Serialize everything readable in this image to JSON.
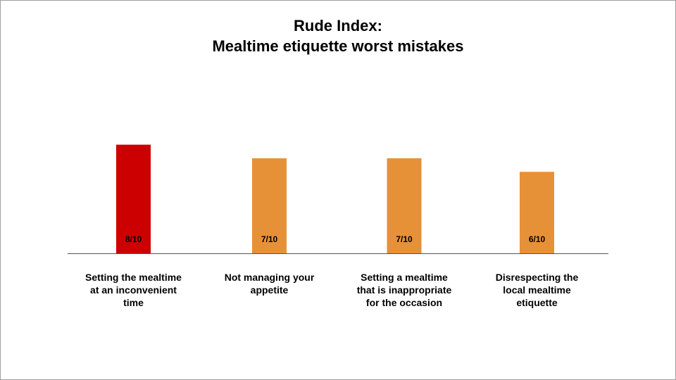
{
  "chart_data": {
    "type": "bar",
    "title": "Rude Index:",
    "subtitle": "Mealtime etiquette worst mistakes",
    "categories": [
      "Setting the mealtime at an inconvenient time",
      "Not managing your appetite",
      "Setting a mealtime that is inappropriate for the occasion",
      "Disrespecting the local mealtime etiquette"
    ],
    "values": [
      8,
      7,
      7,
      6
    ],
    "data_labels": [
      "8/10",
      "7/10",
      "7/10",
      "6/10"
    ],
    "colors": [
      "#cc0000",
      "#e69138",
      "#e69138",
      "#e69138"
    ],
    "ylim": [
      0,
      10
    ],
    "xlabel": "",
    "ylabel": "",
    "grid": false
  }
}
